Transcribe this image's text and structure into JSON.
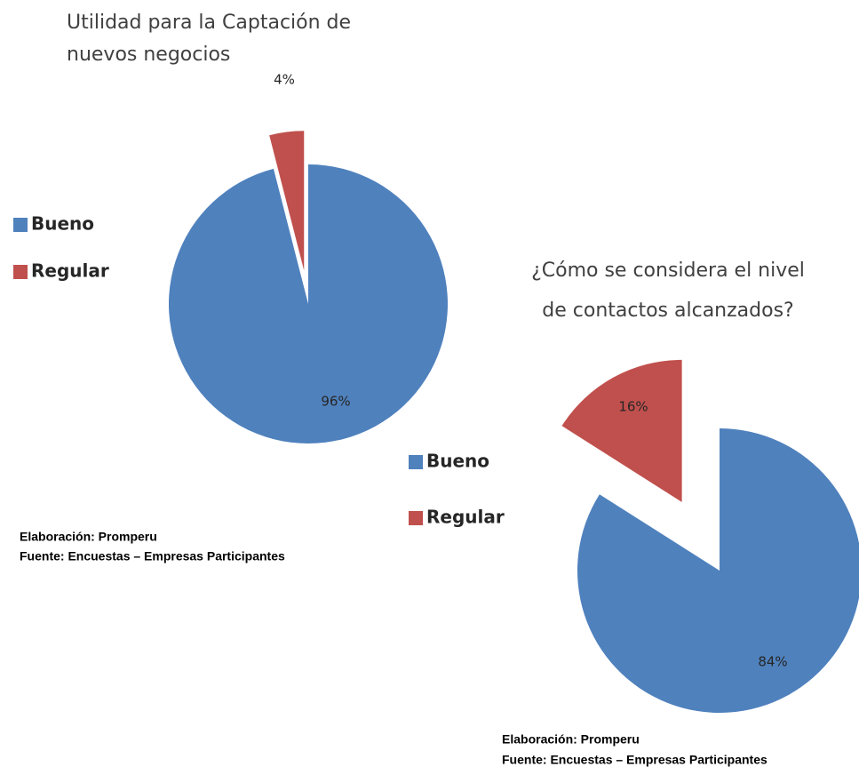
{
  "chart_data": [
    {
      "type": "pie",
      "title": [
        "Utilidad para la Captación de",
        "nuevos negocios"
      ],
      "categories": [
        "Bueno",
        "Regular"
      ],
      "values": [
        96,
        4
      ],
      "value_labels": [
        "96%",
        "4%"
      ],
      "colors": [
        "#4f81bd",
        "#c0504d"
      ],
      "source": [
        "Elaboración: Promperu",
        "Fuente: Encuestas – Empresas Participantes"
      ]
    },
    {
      "type": "pie",
      "title": [
        "¿Cómo se considera el nivel",
        "de contactos alcanzados?"
      ],
      "categories": [
        "Bueno",
        "Regular"
      ],
      "values": [
        84,
        16
      ],
      "value_labels": [
        "84%",
        "16%"
      ],
      "colors": [
        "#4f81bd",
        "#c0504d"
      ],
      "source": [
        "Elaboración: Promperu",
        "Fuente: Encuestas – Empresas Participantes"
      ]
    }
  ]
}
